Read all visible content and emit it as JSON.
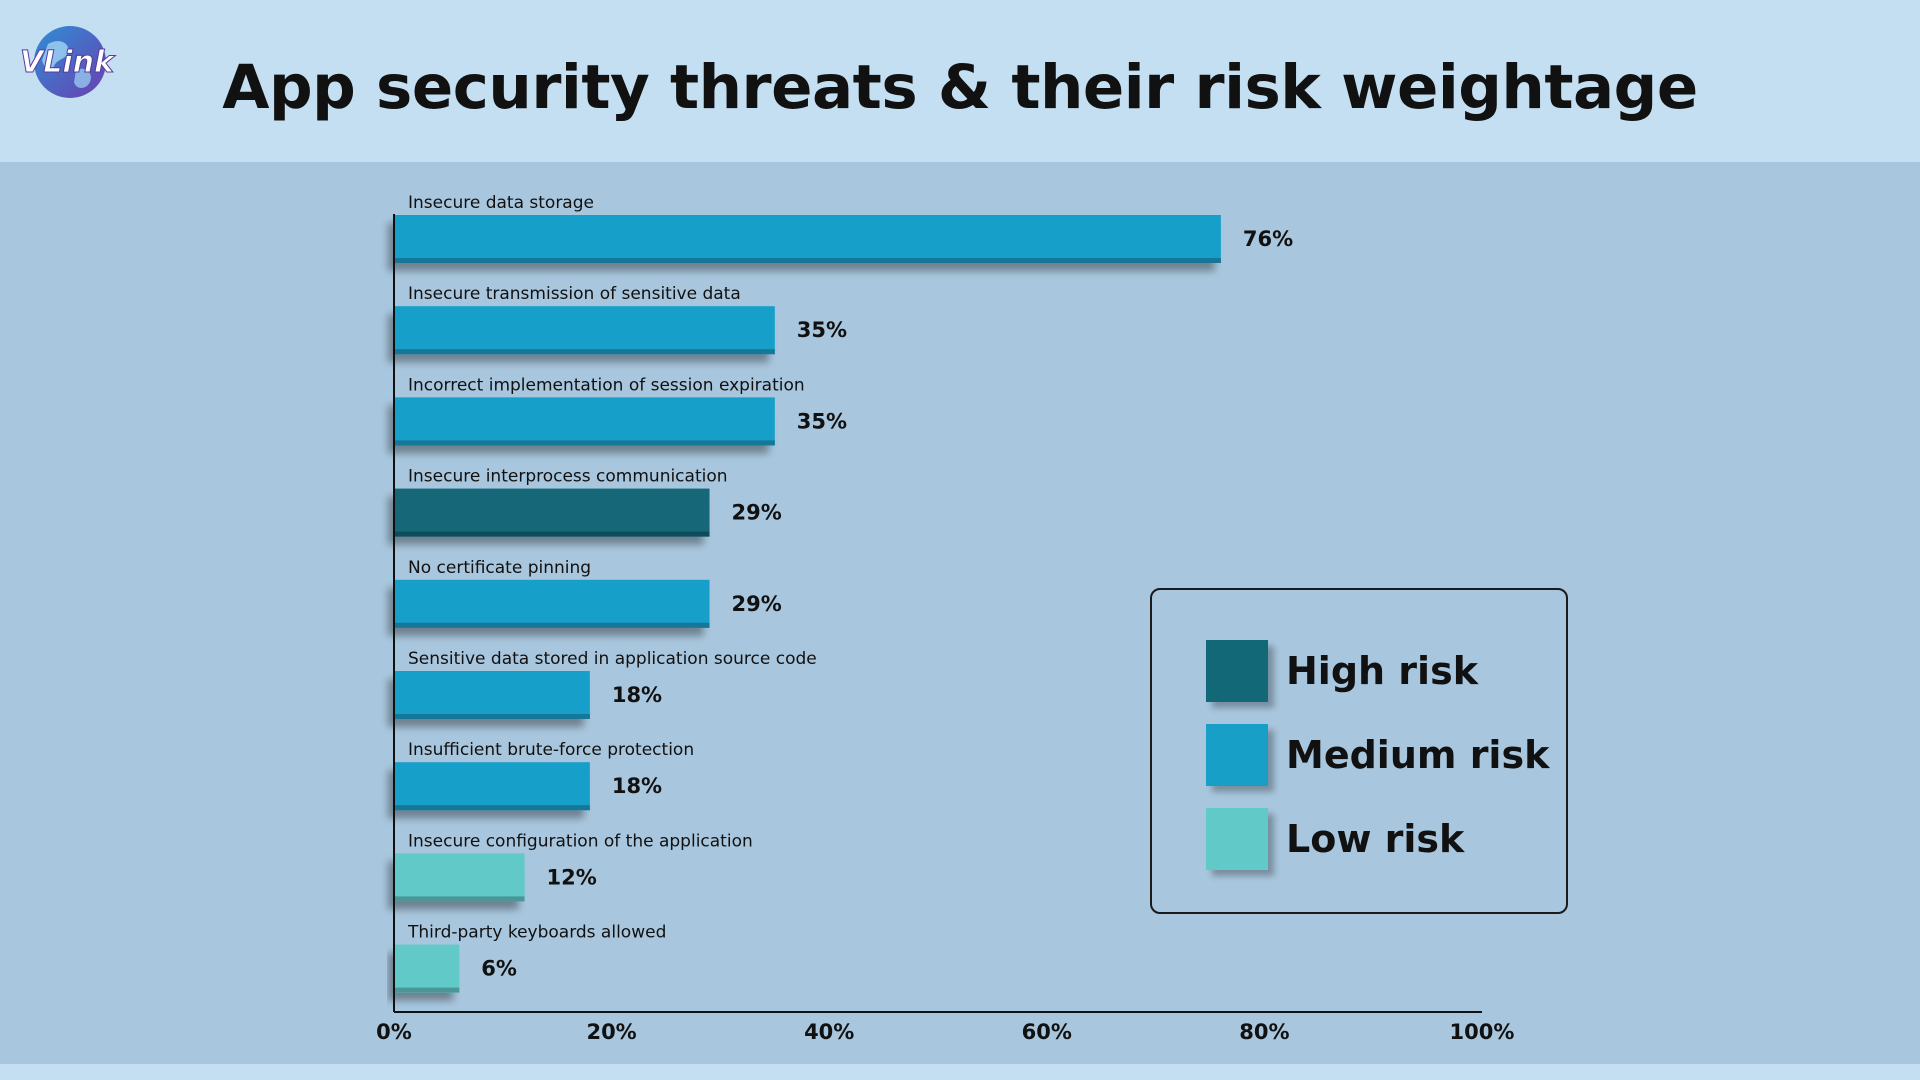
{
  "header": {
    "title": "App security threats & their risk weightage",
    "logo_text": "VLink"
  },
  "colors": {
    "header_bg": "#c4def2",
    "plot_bg": "#a8c6dd",
    "high_risk": "#136878",
    "medium_risk": "#189fc8",
    "low_risk": "#62c9c9"
  },
  "legend": {
    "items": [
      {
        "label": "High risk",
        "color": "#136878"
      },
      {
        "label": "Medium risk",
        "color": "#189fc8"
      },
      {
        "label": "Low risk",
        "color": "#62c9c9"
      }
    ],
    "placement": "right"
  },
  "chart_data": {
    "type": "bar",
    "orientation": "horizontal",
    "categories": [
      "Insecure data storage",
      "Insecure transmission of sensitive data",
      "Incorrect implementation of session expiration",
      "Insecure interprocess communication",
      "No certificate pinning",
      "Sensitive data stored in application source code",
      "Insufficient brute-force protection",
      "Insecure configuration of the application",
      "Third-party keyboards allowed"
    ],
    "values": [
      76,
      35,
      35,
      29,
      29,
      18,
      18,
      12,
      6
    ],
    "data_labels": [
      "76%",
      "35%",
      "35%",
      "29%",
      "29%",
      "18%",
      "18%",
      "12%",
      "6%"
    ],
    "risk": [
      "Medium risk",
      "Medium risk",
      "Medium risk",
      "High risk",
      "Medium risk",
      "Medium risk",
      "Medium risk",
      "Low risk",
      "Low risk"
    ],
    "xlim": [
      0,
      100
    ],
    "xticks": [
      "0%",
      "20%",
      "40%",
      "60%",
      "80%",
      "100%"
    ],
    "grid": false
  }
}
